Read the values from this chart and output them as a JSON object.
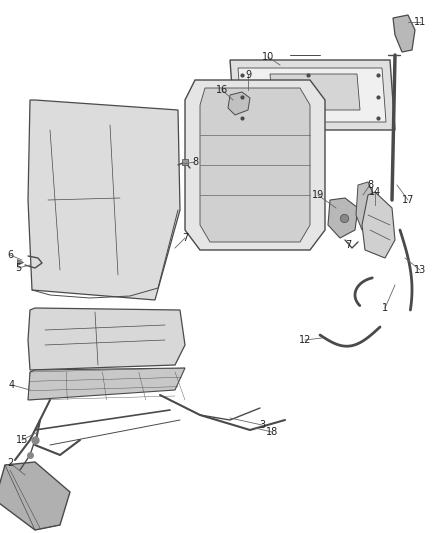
{
  "background_color": "#ffffff",
  "fig_width": 4.38,
  "fig_height": 5.33,
  "dpi": 100,
  "lc": "#4a4a4a",
  "llc": "#666666",
  "fs": 7.0
}
